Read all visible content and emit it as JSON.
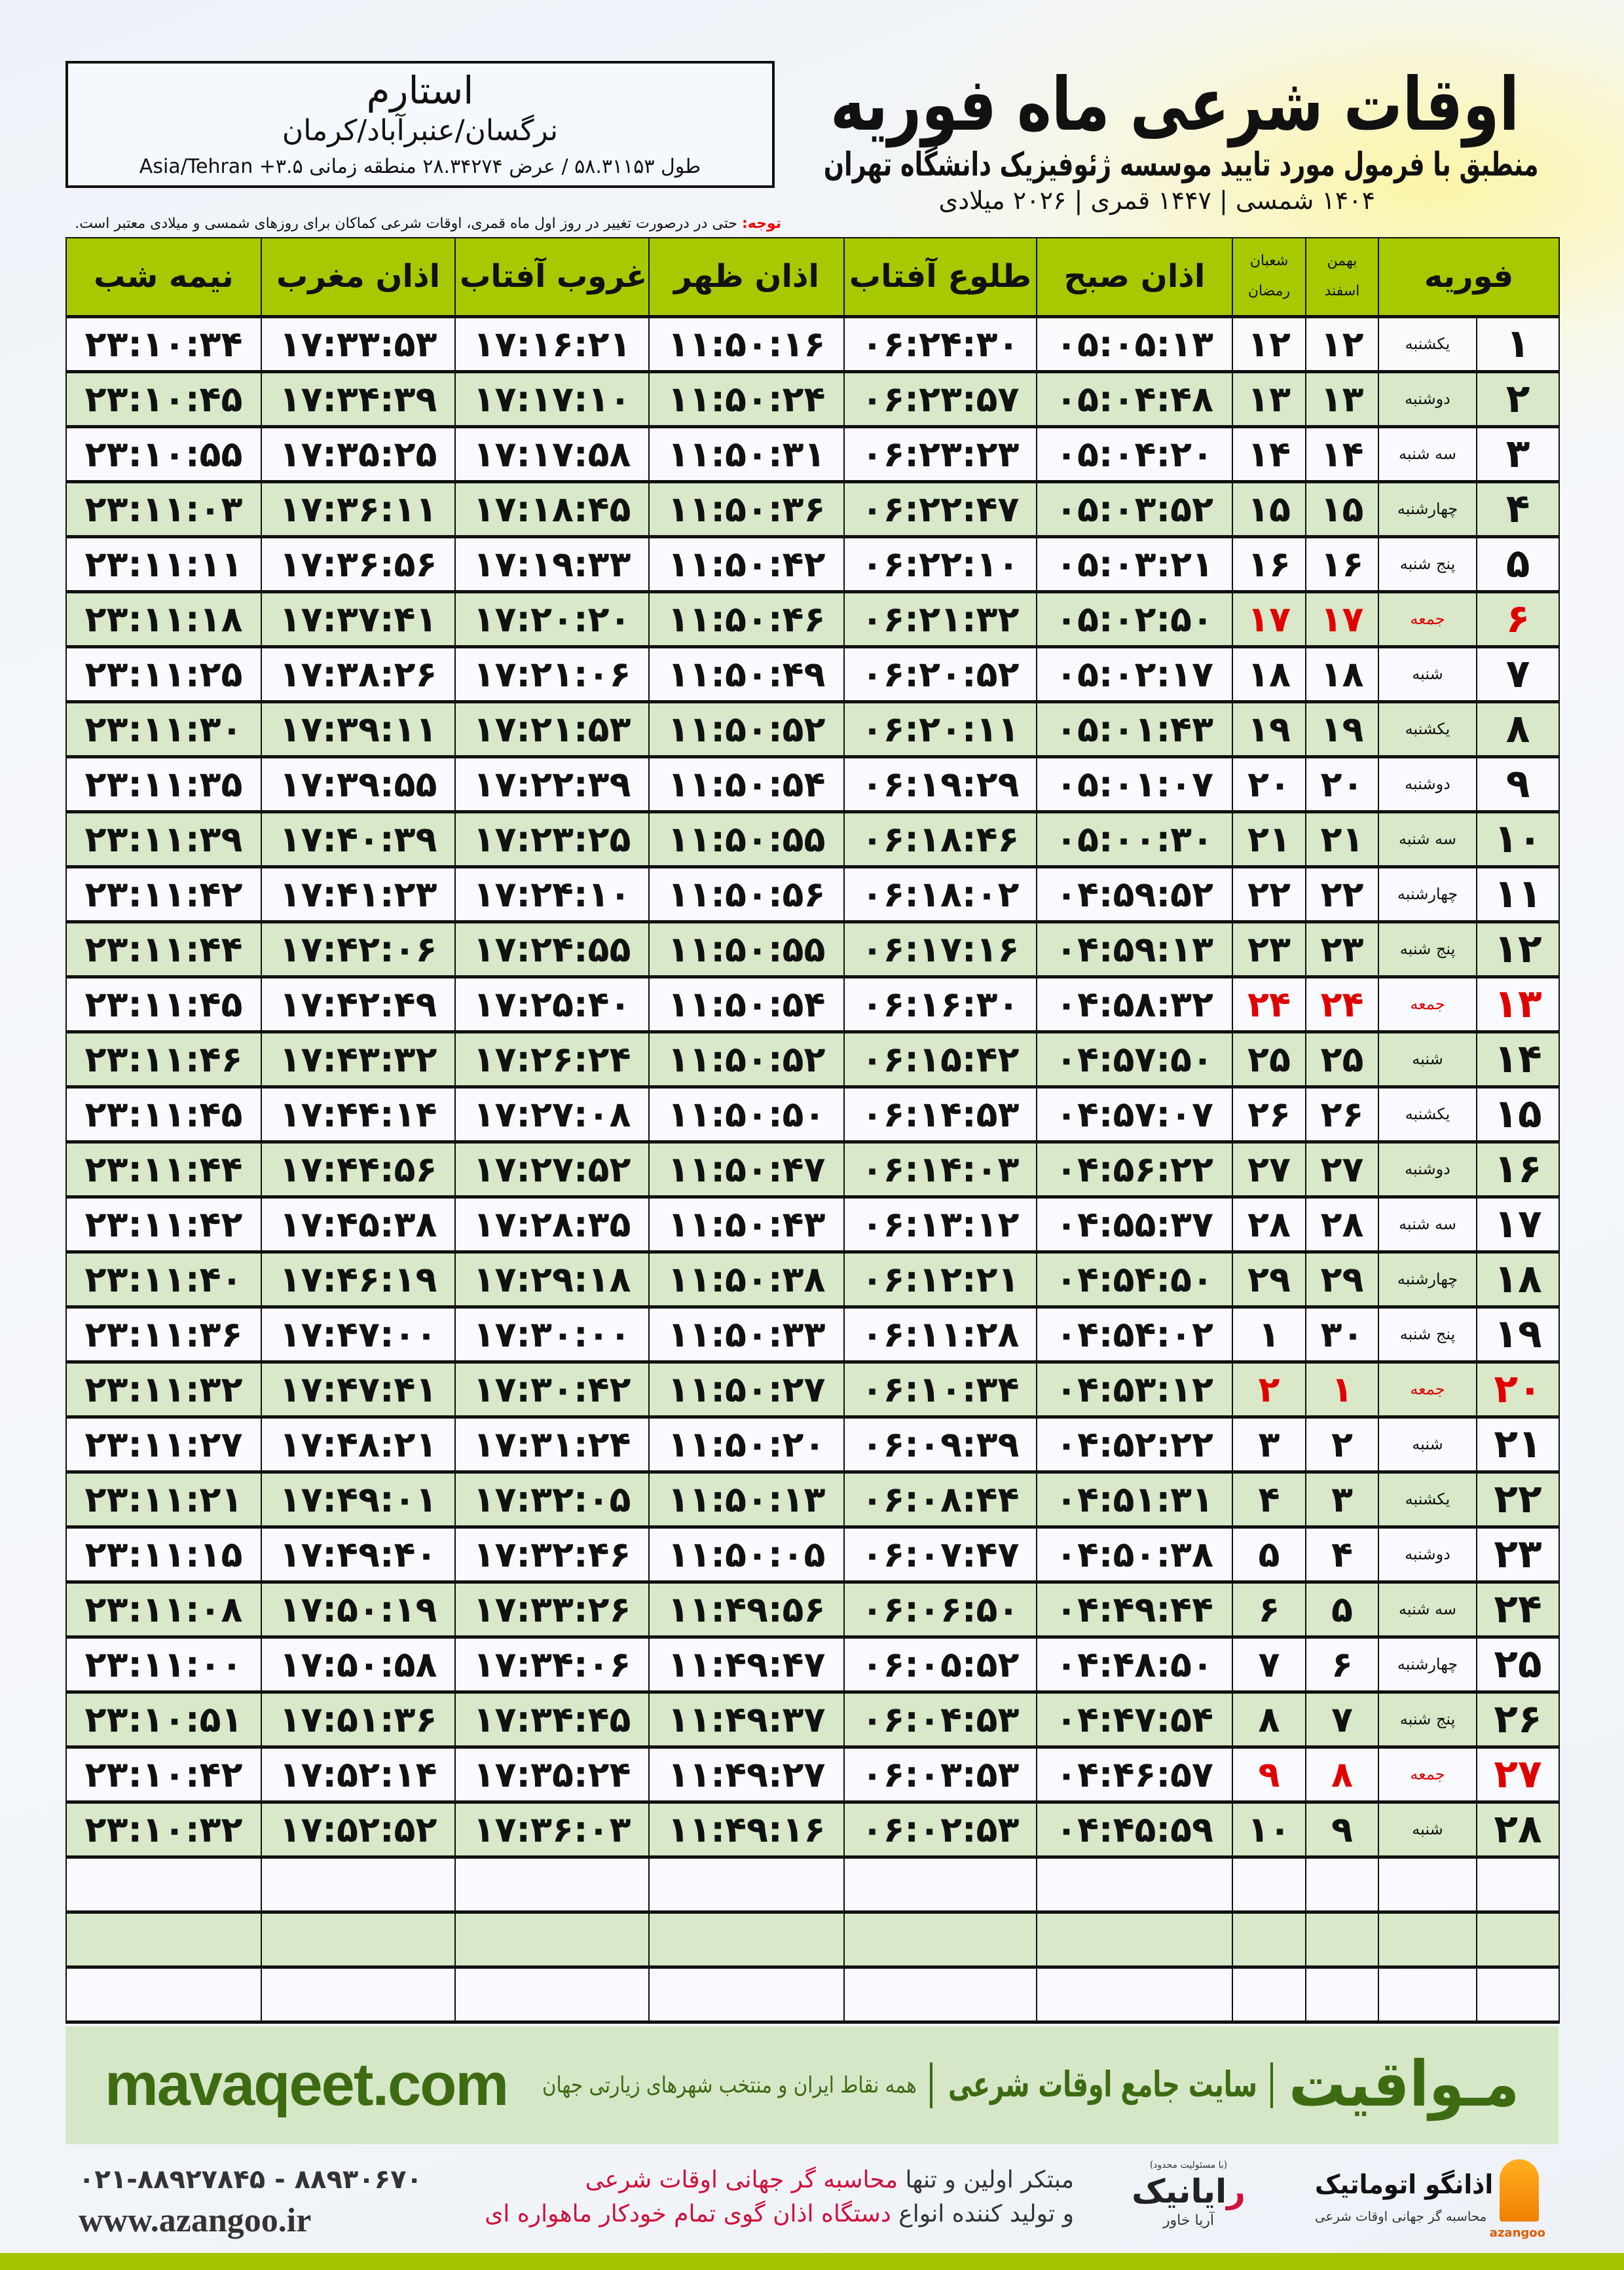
{
  "header": {
    "title": "اوقات شرعی ماه فوریه",
    "subtitle": "منطبق با فرمول مورد تایید موسسه ژئوفیزیک دانشگاه تهران",
    "years": "۱۴۰۴ شمسی | ۱۴۴۷ قمری | ۲۰۲۶ میلادی"
  },
  "location": {
    "name": "استارم",
    "path": "نرگسان/عنبرآباد/کرمان",
    "coords": "طول ۵۸.۳۱۱۵۳ / عرض ۲۸.۳۴۲۷۴ منطقه زمانی ۳.۵+ Asia/Tehran"
  },
  "note": {
    "label": "توجه:",
    "text": " حتی در درصورت تغییر در روز اول ماه قمری، اوقات شرعی کماکان برای روزهای شمسی و میلادی معتبر است."
  },
  "table": {
    "holiday_weekday": "جمعه",
    "holiday_color": "#e00000",
    "headers": {
      "month": "فوریه",
      "shamsi_top": "بهمن",
      "shamsi_bottom": "اسفند",
      "lunar_top": "شعبان",
      "lunar_bottom": "رمضان",
      "fajr": "اذان صبح",
      "sunrise": "طلوع آفتاب",
      "dhuhr": "اذان ظهر",
      "sunset": "غروب آفتاب",
      "maghrib": "اذان مغرب",
      "midnight": "نیمه شب"
    },
    "rows": [
      [
        "۱",
        "یکشنبه",
        "۱۲",
        "۱۲",
        "۰۵:۰۵:۱۳",
        "۰۶:۲۴:۳۰",
        "۱۱:۵۰:۱۶",
        "۱۷:۱۶:۲۱",
        "۱۷:۳۳:۵۳",
        "۲۳:۱۰:۳۴"
      ],
      [
        "۲",
        "دوشنبه",
        "۱۳",
        "۱۳",
        "۰۵:۰۴:۴۸",
        "۰۶:۲۳:۵۷",
        "۱۱:۵۰:۲۴",
        "۱۷:۱۷:۱۰",
        "۱۷:۳۴:۳۹",
        "۲۳:۱۰:۴۵"
      ],
      [
        "۳",
        "سه شنبه",
        "۱۴",
        "۱۴",
        "۰۵:۰۴:۲۰",
        "۰۶:۲۳:۲۳",
        "۱۱:۵۰:۳۱",
        "۱۷:۱۷:۵۸",
        "۱۷:۳۵:۲۵",
        "۲۳:۱۰:۵۵"
      ],
      [
        "۴",
        "چهارشنبه",
        "۱۵",
        "۱۵",
        "۰۵:۰۳:۵۲",
        "۰۶:۲۲:۴۷",
        "۱۱:۵۰:۳۶",
        "۱۷:۱۸:۴۵",
        "۱۷:۳۶:۱۱",
        "۲۳:۱۱:۰۳"
      ],
      [
        "۵",
        "پنج شنبه",
        "۱۶",
        "۱۶",
        "۰۵:۰۳:۲۱",
        "۰۶:۲۲:۱۰",
        "۱۱:۵۰:۴۲",
        "۱۷:۱۹:۳۳",
        "۱۷:۳۶:۵۶",
        "۲۳:۱۱:۱۱"
      ],
      [
        "۶",
        "جمعه",
        "۱۷",
        "۱۷",
        "۰۵:۰۲:۵۰",
        "۰۶:۲۱:۳۲",
        "۱۱:۵۰:۴۶",
        "۱۷:۲۰:۲۰",
        "۱۷:۳۷:۴۱",
        "۲۳:۱۱:۱۸"
      ],
      [
        "۷",
        "شنبه",
        "۱۸",
        "۱۸",
        "۰۵:۰۲:۱۷",
        "۰۶:۲۰:۵۲",
        "۱۱:۵۰:۴۹",
        "۱۷:۲۱:۰۶",
        "۱۷:۳۸:۲۶",
        "۲۳:۱۱:۲۵"
      ],
      [
        "۸",
        "یکشنبه",
        "۱۹",
        "۱۹",
        "۰۵:۰۱:۴۳",
        "۰۶:۲۰:۱۱",
        "۱۱:۵۰:۵۲",
        "۱۷:۲۱:۵۳",
        "۱۷:۳۹:۱۱",
        "۲۳:۱۱:۳۰"
      ],
      [
        "۹",
        "دوشنبه",
        "۲۰",
        "۲۰",
        "۰۵:۰۱:۰۷",
        "۰۶:۱۹:۲۹",
        "۱۱:۵۰:۵۴",
        "۱۷:۲۲:۳۹",
        "۱۷:۳۹:۵۵",
        "۲۳:۱۱:۳۵"
      ],
      [
        "۱۰",
        "سه شنبه",
        "۲۱",
        "۲۱",
        "۰۵:۰۰:۳۰",
        "۰۶:۱۸:۴۶",
        "۱۱:۵۰:۵۵",
        "۱۷:۲۳:۲۵",
        "۱۷:۴۰:۳۹",
        "۲۳:۱۱:۳۹"
      ],
      [
        "۱۱",
        "چهارشنبه",
        "۲۲",
        "۲۲",
        "۰۴:۵۹:۵۲",
        "۰۶:۱۸:۰۲",
        "۱۱:۵۰:۵۶",
        "۱۷:۲۴:۱۰",
        "۱۷:۴۱:۲۳",
        "۲۳:۱۱:۴۲"
      ],
      [
        "۱۲",
        "پنج شنبه",
        "۲۳",
        "۲۳",
        "۰۴:۵۹:۱۳",
        "۰۶:۱۷:۱۶",
        "۱۱:۵۰:۵۵",
        "۱۷:۲۴:۵۵",
        "۱۷:۴۲:۰۶",
        "۲۳:۱۱:۴۴"
      ],
      [
        "۱۳",
        "جمعه",
        "۲۴",
        "۲۴",
        "۰۴:۵۸:۳۲",
        "۰۶:۱۶:۳۰",
        "۱۱:۵۰:۵۴",
        "۱۷:۲۵:۴۰",
        "۱۷:۴۲:۴۹",
        "۲۳:۱۱:۴۵"
      ],
      [
        "۱۴",
        "شنبه",
        "۲۵",
        "۲۵",
        "۰۴:۵۷:۵۰",
        "۰۶:۱۵:۴۲",
        "۱۱:۵۰:۵۲",
        "۱۷:۲۶:۲۴",
        "۱۷:۴۳:۳۲",
        "۲۳:۱۱:۴۶"
      ],
      [
        "۱۵",
        "یکشنبه",
        "۲۶",
        "۲۶",
        "۰۴:۵۷:۰۷",
        "۰۶:۱۴:۵۳",
        "۱۱:۵۰:۵۰",
        "۱۷:۲۷:۰۸",
        "۱۷:۴۴:۱۴",
        "۲۳:۱۱:۴۵"
      ],
      [
        "۱۶",
        "دوشنبه",
        "۲۷",
        "۲۷",
        "۰۴:۵۶:۲۲",
        "۰۶:۱۴:۰۳",
        "۱۱:۵۰:۴۷",
        "۱۷:۲۷:۵۲",
        "۱۷:۴۴:۵۶",
        "۲۳:۱۱:۴۴"
      ],
      [
        "۱۷",
        "سه شنبه",
        "۲۸",
        "۲۸",
        "۰۴:۵۵:۳۷",
        "۰۶:۱۳:۱۲",
        "۱۱:۵۰:۴۳",
        "۱۷:۲۸:۳۵",
        "۱۷:۴۵:۳۸",
        "۲۳:۱۱:۴۲"
      ],
      [
        "۱۸",
        "چهارشنبه",
        "۲۹",
        "۲۹",
        "۰۴:۵۴:۵۰",
        "۰۶:۱۲:۲۱",
        "۱۱:۵۰:۳۸",
        "۱۷:۲۹:۱۸",
        "۱۷:۴۶:۱۹",
        "۲۳:۱۱:۴۰"
      ],
      [
        "۱۹",
        "پنج شنبه",
        "۳۰",
        "۱",
        "۰۴:۵۴:۰۲",
        "۰۶:۱۱:۲۸",
        "۱۱:۵۰:۳۳",
        "۱۷:۳۰:۰۰",
        "۱۷:۴۷:۰۰",
        "۲۳:۱۱:۳۶"
      ],
      [
        "۲۰",
        "جمعه",
        "۱",
        "۲",
        "۰۴:۵۳:۱۲",
        "۰۶:۱۰:۳۴",
        "۱۱:۵۰:۲۷",
        "۱۷:۳۰:۴۲",
        "۱۷:۴۷:۴۱",
        "۲۳:۱۱:۳۲"
      ],
      [
        "۲۱",
        "شنبه",
        "۲",
        "۳",
        "۰۴:۵۲:۲۲",
        "۰۶:۰۹:۳۹",
        "۱۱:۵۰:۲۰",
        "۱۷:۳۱:۲۴",
        "۱۷:۴۸:۲۱",
        "۲۳:۱۱:۲۷"
      ],
      [
        "۲۲",
        "یکشنبه",
        "۳",
        "۴",
        "۰۴:۵۱:۳۱",
        "۰۶:۰۸:۴۴",
        "۱۱:۵۰:۱۳",
        "۱۷:۳۲:۰۵",
        "۱۷:۴۹:۰۱",
        "۲۳:۱۱:۲۱"
      ],
      [
        "۲۳",
        "دوشنبه",
        "۴",
        "۵",
        "۰۴:۵۰:۳۸",
        "۰۶:۰۷:۴۷",
        "۱۱:۵۰:۰۵",
        "۱۷:۳۲:۴۶",
        "۱۷:۴۹:۴۰",
        "۲۳:۱۱:۱۵"
      ],
      [
        "۲۴",
        "سه شنبه",
        "۵",
        "۶",
        "۰۴:۴۹:۴۴",
        "۰۶:۰۶:۵۰",
        "۱۱:۴۹:۵۶",
        "۱۷:۳۳:۲۶",
        "۱۷:۵۰:۱۹",
        "۲۳:۱۱:۰۸"
      ],
      [
        "۲۵",
        "چهارشنبه",
        "۶",
        "۷",
        "۰۴:۴۸:۵۰",
        "۰۶:۰۵:۵۲",
        "۱۱:۴۹:۴۷",
        "۱۷:۳۴:۰۶",
        "۱۷:۵۰:۵۸",
        "۲۳:۱۱:۰۰"
      ],
      [
        "۲۶",
        "پنج شنبه",
        "۷",
        "۸",
        "۰۴:۴۷:۵۴",
        "۰۶:۰۴:۵۳",
        "۱۱:۴۹:۳۷",
        "۱۷:۳۴:۴۵",
        "۱۷:۵۱:۳۶",
        "۲۳:۱۰:۵۱"
      ],
      [
        "۲۷",
        "جمعه",
        "۸",
        "۹",
        "۰۴:۴۶:۵۷",
        "۰۶:۰۳:۵۳",
        "۱۱:۴۹:۲۷",
        "۱۷:۳۵:۲۴",
        "۱۷:۵۲:۱۴",
        "۲۳:۱۰:۴۲"
      ],
      [
        "۲۸",
        "شنبه",
        "۹",
        "۱۰",
        "۰۴:۴۵:۵۹",
        "۰۶:۰۲:۵۳",
        "۱۱:۴۹:۱۶",
        "۱۷:۳۶:۰۳",
        "۱۷:۵۲:۵۲",
        "۲۳:۱۰:۳۲"
      ]
    ],
    "empty_rows": 3
  },
  "footer": {
    "logo": "مـواقیت",
    "slogan": "سایت جامع اوقات شرعی",
    "tagline": "همه نقاط ایران و منتخب شهرهای زیارتی جهان",
    "url": "mavaqeet.com",
    "promo_line1_a": "مبتکر اولین و تنها ",
    "promo_line1_b": "محاسبه گر جهانی اوقات شرعی",
    "promo_line2_a": "و تولید کننده انواع ",
    "promo_line2_b": "دستگاه اذان گوی تمام خودکار ماهواره ای",
    "phone": "۰۲۱-۸۸۹۲۷۸۴۵ - ۸۸۹۳۰۶۷۰",
    "website": "www.azangoo.ir",
    "raya_small": "(با مسئولیت محدود)",
    "raya_name_red": "ر",
    "raya_name": "ایانیک",
    "raya_sub": "آریا خاور",
    "azangoo_name": "اذانگو اتوماتیک",
    "azangoo_sub": "محاسبه گر جهانی اوقات شرعی",
    "azangoo_en": "azangoo"
  },
  "colors": {
    "header_green": "#a8c800",
    "row_green": "#d8e8c8",
    "brand_green": "#3d6b12",
    "accent_red": "#d0103a"
  }
}
